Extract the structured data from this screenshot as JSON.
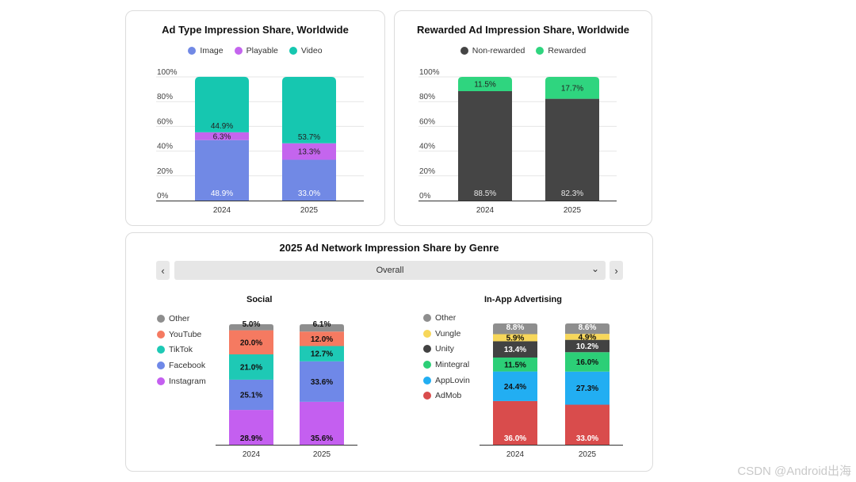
{
  "chart_data": [
    {
      "id": "ad_type",
      "type": "bar",
      "stacked": true,
      "title": "Ad Type Impression Share, Worldwide",
      "categories": [
        "2024",
        "2025"
      ],
      "series": [
        {
          "name": "Image",
          "color": "#7189e5",
          "values": [
            48.9,
            33.0
          ],
          "labels": [
            "48.9%",
            "33.0%"
          ]
        },
        {
          "name": "Playable",
          "color": "#c465ee",
          "values": [
            6.3,
            13.3
          ],
          "labels": [
            "6.3%",
            "13.3%"
          ]
        },
        {
          "name": "Video",
          "color": "#16c7b0",
          "values": [
            44.9,
            53.7
          ],
          "labels": [
            "44.9%",
            "53.7%"
          ]
        }
      ],
      "yticks": [
        "0%",
        "20%",
        "40%",
        "60%",
        "80%",
        "100%"
      ],
      "ylim": [
        0,
        100
      ]
    },
    {
      "id": "rewarded",
      "type": "bar",
      "stacked": true,
      "title": "Rewarded Ad Impression Share, Worldwide",
      "categories": [
        "2024",
        "2025"
      ],
      "series": [
        {
          "name": "Non-rewarded",
          "color": "#454545",
          "values": [
            88.5,
            82.3
          ],
          "labels": [
            "88.5%",
            "82.3%"
          ]
        },
        {
          "name": "Rewarded",
          "color": "#2fd57f",
          "values": [
            11.5,
            17.7
          ],
          "labels": [
            "11.5%",
            "17.7%"
          ]
        }
      ],
      "yticks": [
        "0%",
        "20%",
        "40%",
        "60%",
        "80%",
        "100%"
      ],
      "ylim": [
        0,
        100
      ]
    },
    {
      "id": "social",
      "type": "bar",
      "stacked": true,
      "title": "Social",
      "categories": [
        "2024",
        "2025"
      ],
      "series": [
        {
          "name": "Instagram",
          "color": "#c45ff0",
          "values": [
            28.9,
            35.6
          ],
          "labels": [
            "28.9%",
            "35.6%"
          ]
        },
        {
          "name": "Facebook",
          "color": "#6f88e8",
          "values": [
            25.1,
            33.6
          ],
          "labels": [
            "25.1%",
            "33.6%"
          ]
        },
        {
          "name": "TikTok",
          "color": "#1ec9b5",
          "values": [
            21.0,
            12.7
          ],
          "labels": [
            "21.0%",
            "12.7%"
          ]
        },
        {
          "name": "YouTube",
          "color": "#f57a61",
          "values": [
            20.0,
            12.0
          ],
          "labels": [
            "20.0%",
            "12.0%"
          ]
        },
        {
          "name": "Other",
          "color": "#8e8e8e",
          "values": [
            5.0,
            6.1
          ],
          "labels": [
            "5.0%",
            "6.1%"
          ]
        }
      ],
      "ylim": [
        0,
        100
      ]
    },
    {
      "id": "inapp",
      "type": "bar",
      "stacked": true,
      "title": "In-App Advertising",
      "categories": [
        "2024",
        "2025"
      ],
      "series": [
        {
          "name": "AdMob",
          "color": "#d94c4c",
          "values": [
            36.0,
            33.0
          ],
          "labels": [
            "36.0%",
            "33.0%"
          ]
        },
        {
          "name": "AppLovin",
          "color": "#22aef2",
          "values": [
            24.4,
            27.3
          ],
          "labels": [
            "24.4%",
            "27.3%"
          ]
        },
        {
          "name": "Mintegral",
          "color": "#2ccf77",
          "values": [
            11.5,
            16.0
          ],
          "labels": [
            "11.5%",
            "16.0%"
          ]
        },
        {
          "name": "Unity",
          "color": "#424242",
          "values": [
            13.4,
            10.2
          ],
          "labels": [
            "13.4%",
            "10.2%"
          ]
        },
        {
          "name": "Vungle",
          "color": "#f7d75a",
          "values": [
            5.9,
            4.9
          ],
          "labels": [
            "5.9%",
            "4.9%"
          ]
        },
        {
          "name": "Other",
          "color": "#8e8e8e",
          "values": [
            8.8,
            8.6
          ],
          "labels": [
            "8.8%",
            "8.6%"
          ]
        }
      ],
      "ylim": [
        0,
        100
      ]
    }
  ],
  "genre_panel": {
    "title": "2025 Ad Network Impression Share by Genre",
    "selected_genre": "Overall",
    "prev_icon": "‹",
    "next_icon": "›",
    "dropdown_icon": "⌄"
  },
  "watermark": "CSDN @Android出海"
}
